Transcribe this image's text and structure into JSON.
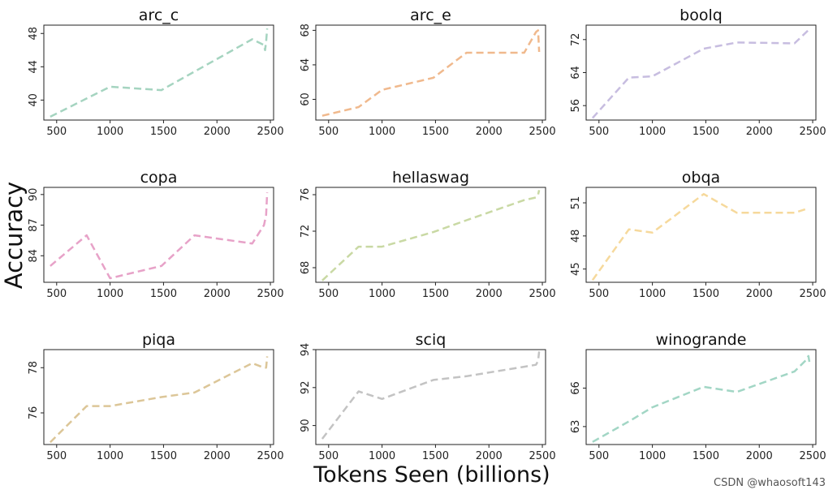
{
  "figure": {
    "ylabel": "Accuracy",
    "xlabel": "Tokens Seen (billions)",
    "watermark": "CSDN @whaosoft143"
  },
  "chart_data": [
    {
      "type": "line",
      "title": "arc_c",
      "color": "#a5d4c0",
      "x": [
        440,
        1000,
        1480,
        2330,
        2440,
        2450,
        2460,
        2470
      ],
      "y": [
        38.0,
        41.6,
        41.2,
        47.3,
        46.6,
        46.0,
        47.0,
        48.6
      ],
      "xlim": [
        380,
        2530
      ],
      "ylim": [
        37.6,
        49.0
      ],
      "xticks": [
        500,
        1000,
        1500,
        2000,
        2500
      ],
      "yticks": [
        40,
        44,
        48
      ]
    },
    {
      "type": "line",
      "title": "arc_e",
      "color": "#f0b98d",
      "x": [
        440,
        780,
        1000,
        1480,
        1790,
        2330,
        2440,
        2460,
        2470
      ],
      "y": [
        58.1,
        59.1,
        61.1,
        62.5,
        65.4,
        65.4,
        67.8,
        68.0,
        65.5
      ],
      "xlim": [
        380,
        2530
      ],
      "ylim": [
        57.6,
        68.6
      ],
      "xticks": [
        500,
        1000,
        1500,
        2000,
        2500
      ],
      "yticks": [
        60,
        64,
        68
      ]
    },
    {
      "type": "line",
      "title": "boolq",
      "color": "#c7bde0",
      "x": [
        440,
        780,
        1000,
        1480,
        1790,
        2330,
        2460
      ],
      "y": [
        53.0,
        62.8,
        63.1,
        69.8,
        71.3,
        71.1,
        74.3
      ],
      "xlim": [
        380,
        2530
      ],
      "ylim": [
        52.5,
        75.5
      ],
      "xticks": [
        500,
        1000,
        1500,
        2000,
        2500
      ],
      "yticks": [
        56,
        64,
        72
      ]
    },
    {
      "type": "line",
      "title": "copa",
      "color": "#e7a2c8",
      "x": [
        440,
        780,
        1000,
        1480,
        1790,
        2330,
        2440,
        2460,
        2470
      ],
      "y": [
        83.0,
        86.0,
        81.8,
        83.0,
        86.0,
        85.2,
        87.0,
        88.0,
        90.2
      ],
      "xlim": [
        380,
        2530
      ],
      "ylim": [
        81.4,
        90.7
      ],
      "xticks": [
        500,
        1000,
        1500,
        2000,
        2500
      ],
      "yticks": [
        84,
        87,
        90
      ]
    },
    {
      "type": "line",
      "title": "hellaswag",
      "color": "#c9d9a4",
      "x": [
        440,
        780,
        1000,
        1480,
        1790,
        2330,
        2440,
        2460,
        2470
      ],
      "y": [
        66.6,
        70.3,
        70.3,
        71.9,
        73.2,
        75.4,
        75.7,
        76.0,
        76.5
      ],
      "xlim": [
        380,
        2530
      ],
      "ylim": [
        66.4,
        76.8
      ],
      "xticks": [
        500,
        1000,
        1500,
        2000,
        2500
      ],
      "yticks": [
        68,
        72,
        76
      ]
    },
    {
      "type": "line",
      "title": "obqa",
      "color": "#f6d99c",
      "x": [
        440,
        780,
        1000,
        1480,
        1790,
        2330,
        2460
      ],
      "y": [
        44.0,
        48.6,
        48.3,
        51.8,
        50.1,
        50.1,
        50.5
      ],
      "xlim": [
        380,
        2530
      ],
      "ylim": [
        43.8,
        52.4
      ],
      "xticks": [
        500,
        1000,
        1500,
        2000,
        2500
      ],
      "yticks": [
        45,
        48,
        51
      ]
    },
    {
      "type": "line",
      "title": "piqa",
      "color": "#dcc698",
      "x": [
        440,
        780,
        1000,
        1480,
        1790,
        2330,
        2440,
        2460,
        2470
      ],
      "y": [
        74.7,
        76.3,
        76.3,
        76.7,
        76.9,
        78.2,
        78.0,
        78.0,
        78.5
      ],
      "xlim": [
        380,
        2530
      ],
      "ylim": [
        74.6,
        78.8
      ],
      "xticks": [
        500,
        1000,
        1500,
        2000,
        2500
      ],
      "yticks": [
        76,
        78
      ]
    },
    {
      "type": "line",
      "title": "sciq",
      "color": "#c3c3c3",
      "x": [
        440,
        780,
        1000,
        1480,
        1790,
        2330,
        2440,
        2460,
        2470
      ],
      "y": [
        89.3,
        91.8,
        91.4,
        92.4,
        92.6,
        93.1,
        93.2,
        93.4,
        93.9
      ],
      "xlim": [
        380,
        2530
      ],
      "ylim": [
        89.0,
        94.0
      ],
      "xticks": [
        500,
        1000,
        1500,
        2000,
        2500
      ],
      "yticks": [
        90,
        92,
        94
      ]
    },
    {
      "type": "line",
      "title": "winogrande",
      "color": "#a2d6c5",
      "x": [
        440,
        780,
        1000,
        1480,
        1790,
        2330,
        2440,
        2460,
        2470
      ],
      "y": [
        61.8,
        63.4,
        64.5,
        66.1,
        65.7,
        67.3,
        68.2,
        68.5,
        68.0
      ],
      "xlim": [
        380,
        2530
      ],
      "ylim": [
        61.6,
        69.0
      ],
      "xticks": [
        500,
        1000,
        1500,
        2000,
        2500
      ],
      "yticks": [
        63,
        66
      ]
    }
  ]
}
